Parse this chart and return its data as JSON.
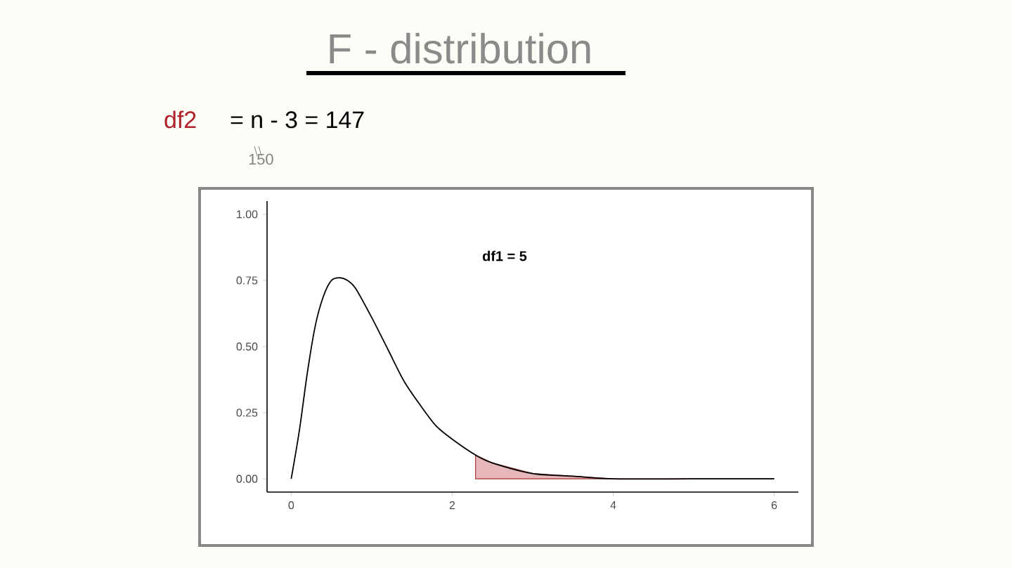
{
  "chart_data": {
    "type": "line",
    "title": "F - distribution",
    "annotations": [
      "df2",
      "= n - 3 = 147",
      "150",
      "df1 = 5"
    ],
    "x": [
      0,
      0.1,
      0.2,
      0.3,
      0.4,
      0.5,
      0.6,
      0.7,
      0.8,
      1.0,
      1.2,
      1.4,
      1.6,
      1.8,
      2.0,
      2.29,
      2.5,
      3,
      3.5,
      4,
      5,
      6
    ],
    "series": [
      {
        "color": "#000000",
        "values": [
          0,
          0.18,
          0.4,
          0.58,
          0.69,
          0.75,
          0.76,
          0.75,
          0.72,
          0.61,
          0.49,
          0.37,
          0.28,
          0.2,
          0.15,
          0.09,
          0.06,
          0.02,
          0.01,
          0,
          0,
          0
        ]
      },
      {
        "type": "area",
        "color": "#e6b8bb",
        "x": [
          2.29,
          2.5,
          3,
          3.5,
          4,
          5,
          6
        ],
        "values": [
          0.09,
          0.06,
          0.02,
          0.01,
          0,
          0,
          0
        ]
      }
    ],
    "xlim": [
      -0.3,
      6.3
    ],
    "ylim": [
      -0.05,
      1.05
    ],
    "xticks": [
      0,
      2,
      4,
      6
    ],
    "yticks": [
      {
        "value": 0,
        "label": "0.00"
      },
      {
        "value": 0.25,
        "label": "0.25"
      },
      {
        "value": 0.5,
        "label": "0.50"
      },
      {
        "value": 0.75,
        "label": "0.75"
      },
      {
        "value": 1,
        "label": "1.00"
      }
    ]
  }
}
